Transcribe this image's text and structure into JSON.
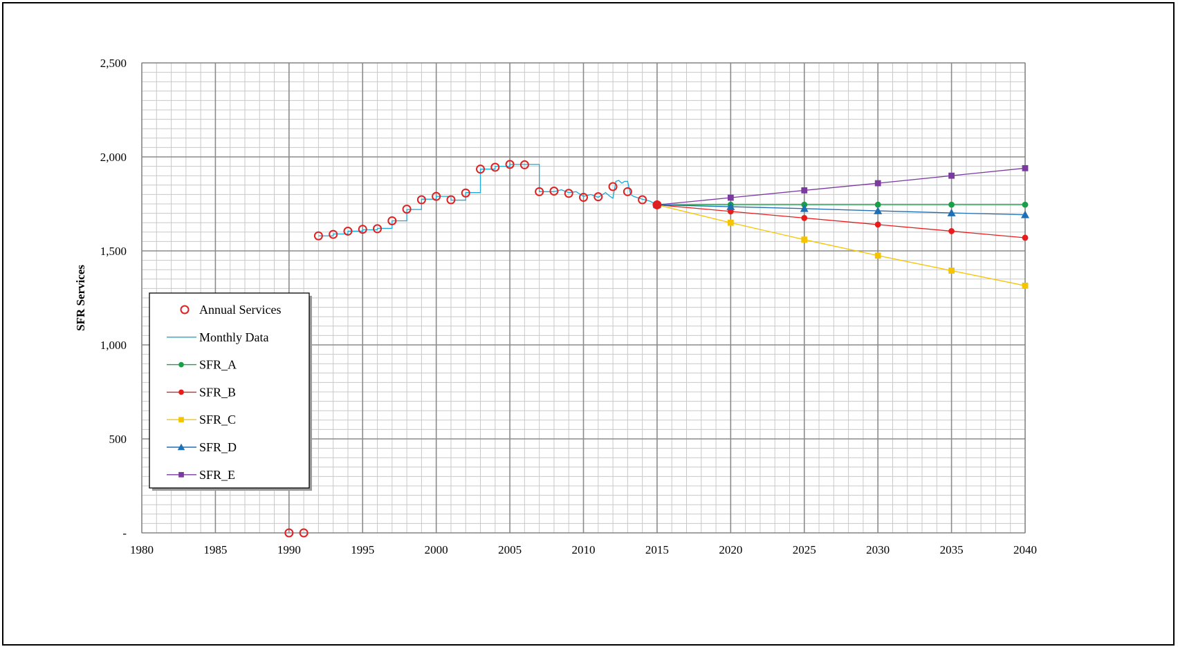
{
  "chart_data": {
    "type": "line",
    "ylabel": "SFR Services",
    "xlabel": "",
    "xlim": [
      1980,
      2040
    ],
    "ylim": [
      0,
      2500
    ],
    "x_ticks": [
      1980,
      1985,
      1990,
      1995,
      2000,
      2005,
      2010,
      2015,
      2020,
      2025,
      2030,
      2035,
      2040
    ],
    "x_tick_labels": [
      "1980",
      "1985",
      "1990",
      "1995",
      "2000",
      "2005",
      "2010",
      "2015",
      "2020",
      "2025",
      "2030",
      "2035",
      "2040"
    ],
    "y_ticks": [
      0,
      500,
      1000,
      1500,
      2000,
      2500
    ],
    "y_tick_labels": [
      "-",
      "500",
      "1,000",
      "1,500",
      "2,000",
      "2,500"
    ],
    "grid": true,
    "legend_position": "left",
    "annual_services": {
      "name": "Annual Services",
      "color": "#e02020",
      "marker": "circle-open",
      "x": [
        1990,
        1991,
        1992,
        1993,
        1994,
        1995,
        1996,
        1997,
        1998,
        1999,
        2000,
        2001,
        2002,
        2003,
        2004,
        2005,
        2006,
        2007,
        2008,
        2009,
        2010,
        2011,
        2012,
        2013,
        2014,
        2015
      ],
      "y": [
        0,
        0,
        1580,
        1588,
        1605,
        1615,
        1618,
        1660,
        1722,
        1772,
        1790,
        1772,
        1808,
        1935,
        1945,
        1960,
        1958,
        1815,
        1818,
        1806,
        1785,
        1788,
        1842,
        1815,
        1772,
        1745
      ]
    },
    "monthly_data": {
      "name": "Monthly Data",
      "color": "#1aa8d8",
      "x": [
        1992,
        1993,
        1993,
        1994,
        1994,
        1995,
        1995,
        1996,
        1996,
        1997,
        1997,
        1998,
        1998,
        1999,
        1999,
        2000,
        2000,
        2001,
        2001,
        2002,
        2002,
        2003,
        2003,
        2004,
        2004,
        2005,
        2005,
        2006,
        2006,
        2007,
        2007,
        2008,
        2008.5,
        2009,
        2009.5,
        2010,
        2010.5,
        2011,
        2011.5,
        2011.8,
        2012,
        2012.2,
        2012.4,
        2012.6,
        2012.8,
        2013,
        2013.2,
        2013.4,
        2013.8,
        2014,
        2014.5,
        2015
      ],
      "y": [
        1580,
        1580,
        1590,
        1590,
        1605,
        1605,
        1612,
        1612,
        1620,
        1620,
        1660,
        1660,
        1720,
        1720,
        1775,
        1775,
        1790,
        1790,
        1770,
        1770,
        1810,
        1810,
        1935,
        1935,
        1950,
        1950,
        1960,
        1960,
        1960,
        1960,
        1815,
        1815,
        1825,
        1810,
        1815,
        1790,
        1800,
        1785,
        1810,
        1790,
        1780,
        1870,
        1875,
        1860,
        1870,
        1870,
        1800,
        1790,
        1780,
        1775,
        1765,
        1745
      ]
    },
    "series": [
      {
        "name": "SFR_A",
        "color": "#1a9e4a",
        "marker": "circle",
        "x": [
          2015,
          2020,
          2025,
          2030,
          2035,
          2040
        ],
        "y": [
          1745,
          1746,
          1746,
          1746,
          1746,
          1746
        ]
      },
      {
        "name": "SFR_B",
        "color": "#e81c1c",
        "marker": "circle",
        "x": [
          2015,
          2020,
          2025,
          2030,
          2035,
          2040
        ],
        "y": [
          1745,
          1710,
          1675,
          1640,
          1605,
          1570
        ]
      },
      {
        "name": "SFR_C",
        "color": "#f5c400",
        "marker": "square",
        "x": [
          2015,
          2020,
          2025,
          2030,
          2035,
          2040
        ],
        "y": [
          1745,
          1650,
          1560,
          1475,
          1395,
          1315
        ]
      },
      {
        "name": "SFR_D",
        "color": "#1f6fb5",
        "marker": "triangle",
        "x": [
          2015,
          2020,
          2025,
          2030,
          2035,
          2040
        ],
        "y": [
          1745,
          1735,
          1725,
          1713,
          1702,
          1692
        ]
      },
      {
        "name": "SFR_E",
        "color": "#7a3aa0",
        "marker": "square",
        "x": [
          2015,
          2020,
          2025,
          2030,
          2035,
          2040
        ],
        "y": [
          1745,
          1783,
          1822,
          1860,
          1900,
          1940
        ]
      }
    ]
  }
}
